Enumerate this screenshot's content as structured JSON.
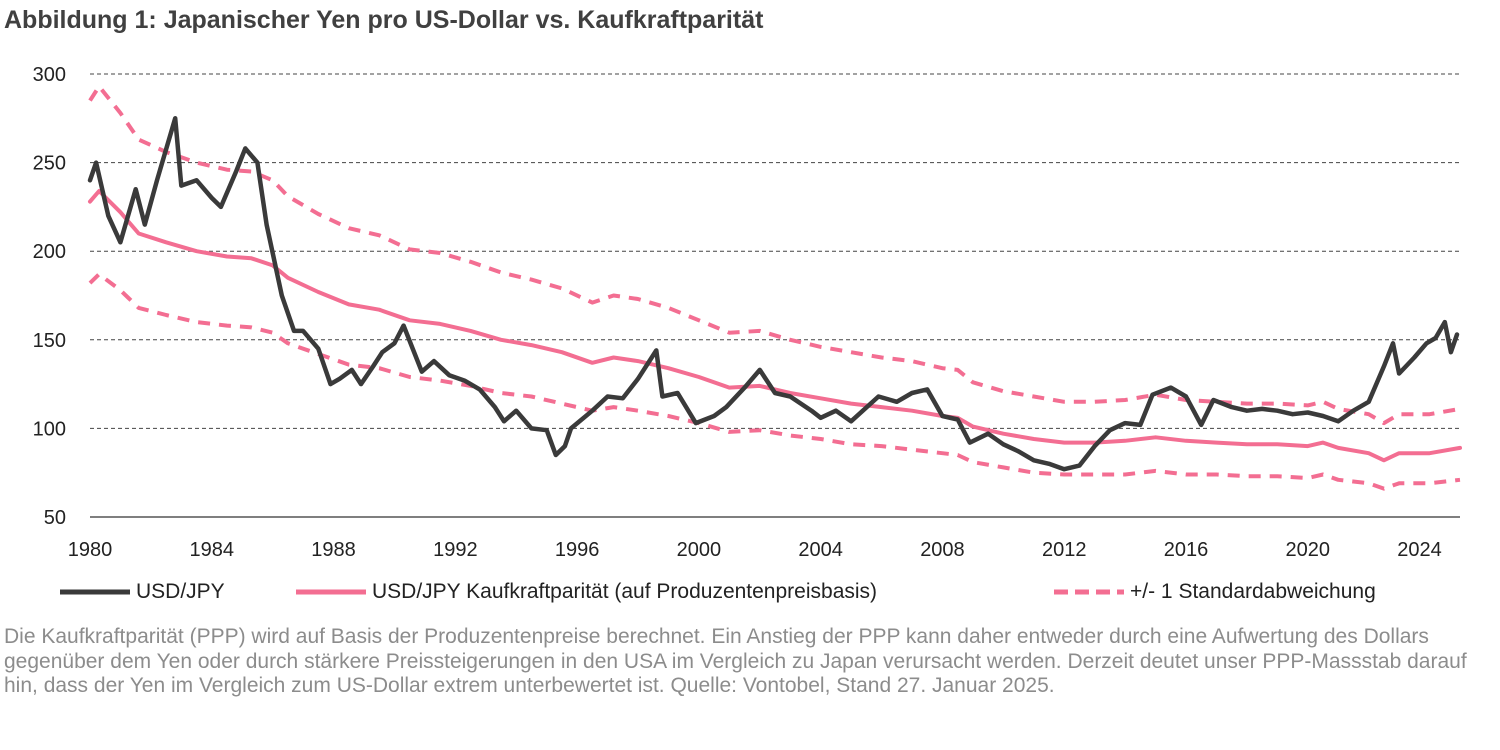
{
  "title": "Abbildung 1: Japanischer Yen pro US-Dollar vs. Kaufkraftparität",
  "chart_data": {
    "type": "line",
    "title": "Abbildung 1: Japanischer Yen pro US-Dollar vs. Kaufkraftparität",
    "xlim": [
      1980,
      2025
    ],
    "ylim": [
      50,
      300
    ],
    "x_ticks": [
      "1980",
      "1984",
      "1988",
      "1992",
      "1996",
      "2000",
      "2004",
      "2008",
      "2012",
      "2016",
      "2020",
      "2024"
    ],
    "y_ticks": [
      "300",
      "250",
      "200",
      "150",
      "100",
      "50"
    ],
    "grid": "horizontal dashed",
    "legend_position": "bottom",
    "colors": {
      "usdjpy": "#3a3a3a",
      "ppp": "#f36e92",
      "band": "#f36e92"
    },
    "series": [
      {
        "name": "USD/JPY",
        "style": "solid",
        "x": [
          1980.0,
          1980.2,
          1980.6,
          1981.0,
          1981.5,
          1981.8,
          1982.2,
          1982.8,
          1983.0,
          1983.5,
          1984.0,
          1984.3,
          1984.8,
          1985.1,
          1985.5,
          1985.8,
          1986.3,
          1986.7,
          1987.0,
          1987.5,
          1987.9,
          1988.2,
          1988.6,
          1988.9,
          1989.3,
          1989.6,
          1990.0,
          1990.3,
          1990.6,
          1990.9,
          1991.3,
          1991.8,
          1992.3,
          1992.8,
          1993.3,
          1993.6,
          1994.0,
          1994.5,
          1995.0,
          1995.3,
          1995.6,
          1995.8,
          1996.5,
          1997.0,
          1997.5,
          1998.0,
          1998.6,
          1998.8,
          1999.3,
          1999.9,
          2000.5,
          2000.9,
          2001.5,
          2002.0,
          2002.5,
          2003.0,
          2003.7,
          2004.0,
          2004.5,
          2005.0,
          2005.9,
          2006.5,
          2007.0,
          2007.5,
          2008.0,
          2008.5,
          2008.9,
          2009.5,
          2010.0,
          2010.5,
          2011.0,
          2011.5,
          2012.0,
          2012.5,
          2013.0,
          2013.5,
          2014.0,
          2014.5,
          2014.9,
          2015.5,
          2016.0,
          2016.5,
          2016.9,
          2017.5,
          2018.0,
          2018.5,
          2019.0,
          2019.5,
          2020.0,
          2020.5,
          2021.0,
          2021.5,
          2022.0,
          2022.5,
          2022.8,
          2023.0,
          2023.5,
          2023.9,
          2024.2,
          2024.5,
          2024.7,
          2024.9
        ],
        "values": [
          240,
          250,
          220,
          205,
          235,
          215,
          240,
          275,
          237,
          240,
          230,
          225,
          245,
          258,
          250,
          215,
          175,
          155,
          155,
          145,
          125,
          128,
          133,
          125,
          135,
          143,
          148,
          158,
          145,
          132,
          138,
          130,
          127,
          122,
          112,
          104,
          110,
          100,
          99,
          85,
          90,
          100,
          110,
          118,
          117,
          128,
          144,
          118,
          120,
          103,
          107,
          112,
          123,
          133,
          120,
          118,
          110,
          106,
          110,
          104,
          118,
          115,
          120,
          122,
          107,
          105,
          92,
          97,
          91,
          87,
          82,
          80,
          77,
          79,
          90,
          99,
          103,
          102,
          119,
          123,
          118,
          102,
          116,
          112,
          110,
          111,
          110,
          108,
          109,
          107,
          104,
          110,
          115,
          135,
          148,
          131,
          140,
          148,
          151,
          160,
          143,
          153
        ]
      },
      {
        "name": "USD/JPY Kaufkraftparität (auf Produzentenpreisbasis)",
        "style": "solid",
        "x": [
          1980,
          1980.3,
          1981,
          1981.6,
          1982.5,
          1983.5,
          1984.5,
          1985.3,
          1986,
          1986.5,
          1987.5,
          1988.5,
          1989.5,
          1990.5,
          1991.5,
          1992.5,
          1993.5,
          1994.5,
          1995.5,
          1996.5,
          1997.2,
          1998,
          1999,
          2000,
          2001,
          2002,
          2003,
          2004,
          2005,
          2006,
          2007,
          2008,
          2008.5,
          2009,
          2010,
          2011,
          2012,
          2013,
          2014,
          2015,
          2016,
          2017,
          2018,
          2019,
          2020,
          2020.5,
          2021,
          2022,
          2022.5,
          2023,
          2024,
          2025
        ],
        "values": [
          228,
          234,
          222,
          210,
          205,
          200,
          197,
          196,
          192,
          185,
          177,
          170,
          167,
          161,
          159,
          155,
          150,
          147,
          143,
          137,
          140,
          138,
          134,
          129,
          123,
          124,
          120,
          117,
          114,
          112,
          110,
          107,
          106,
          101,
          97,
          94,
          92,
          92,
          93,
          95,
          93,
          92,
          91,
          91,
          90,
          92,
          89,
          86,
          82,
          86,
          86,
          89
        ]
      },
      {
        "name": "+/- 1 Standardabweichung",
        "style": "dashed",
        "band": "upper",
        "x": [
          1980,
          1980.3,
          1981,
          1981.6,
          1982.5,
          1983.5,
          1984.5,
          1985.3,
          1986,
          1986.5,
          1987.5,
          1988.5,
          1989.5,
          1990.5,
          1991.5,
          1992.5,
          1993.5,
          1994.5,
          1995.5,
          1996.5,
          1997.2,
          1998,
          1999,
          2000,
          2001,
          2002,
          2003,
          2004,
          2005,
          2006,
          2007,
          2008,
          2008.5,
          2009,
          2010,
          2011,
          2012,
          2013,
          2014,
          2015,
          2016,
          2017,
          2018,
          2019,
          2020,
          2020.5,
          2021,
          2022,
          2022.5,
          2023,
          2024,
          2025
        ],
        "values": [
          285,
          293,
          278,
          263,
          256,
          250,
          246,
          245,
          240,
          231,
          221,
          213,
          209,
          201,
          199,
          194,
          188,
          184,
          179,
          171,
          175,
          173,
          168,
          161,
          154,
          155,
          150,
          146,
          143,
          140,
          138,
          134,
          133,
          126,
          121,
          118,
          115,
          115,
          116,
          119,
          116,
          115,
          114,
          114,
          113,
          115,
          111,
          108,
          103,
          108,
          108,
          111
        ]
      },
      {
        "name": "+/- 1 Standardabweichung",
        "style": "dashed",
        "band": "lower",
        "x": [
          1980,
          1980.3,
          1981,
          1981.6,
          1982.5,
          1983.5,
          1984.5,
          1985.3,
          1986,
          1986.5,
          1987.5,
          1988.5,
          1989.5,
          1990.5,
          1991.5,
          1992.5,
          1993.5,
          1994.5,
          1995.5,
          1996.5,
          1997.2,
          1998,
          1999,
          2000,
          2001,
          2002,
          2003,
          2004,
          2005,
          2006,
          2007,
          2008,
          2008.5,
          2009,
          2010,
          2011,
          2012,
          2013,
          2014,
          2015,
          2016,
          2017,
          2018,
          2019,
          2020,
          2020.5,
          2021,
          2022,
          2022.5,
          2023,
          2024,
          2025
        ],
        "values": [
          182,
          187,
          178,
          168,
          164,
          160,
          158,
          157,
          154,
          148,
          142,
          136,
          134,
          129,
          127,
          124,
          120,
          118,
          114,
          110,
          112,
          110,
          107,
          103,
          98,
          99,
          96,
          94,
          91,
          90,
          88,
          86,
          85,
          81,
          78,
          75,
          74,
          74,
          74,
          76,
          74,
          74,
          73,
          73,
          72,
          74,
          71,
          69,
          66,
          69,
          69,
          71
        ]
      }
    ]
  },
  "legend": {
    "item1": "USD/JPY",
    "item2": "USD/JPY Kaufkraftparität (auf Produzentenpreisbasis)",
    "item3": "+/- 1 Standardabweichung"
  },
  "footnote": "Die Kaufkraftparität (PPP) wird auf Basis der Produzentenpreise berechnet. Ein Anstieg der PPP kann daher entweder durch eine Aufwertung des Dollars gegenüber dem Yen oder durch stärkere Preissteigerungen in den USA im Vergleich zu Japan verursacht werden. Derzeit deutet unser PPP-Massstab darauf hin, dass der Yen im Vergleich zum US-Dollar extrem unterbewertet ist. Quelle: Vontobel, Stand 27. Januar 2025."
}
